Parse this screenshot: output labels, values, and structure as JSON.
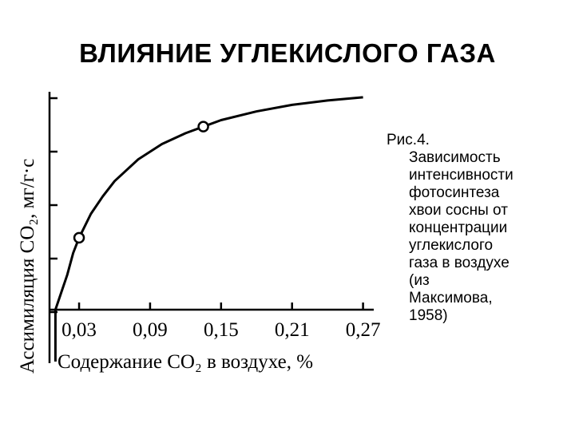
{
  "slide": {
    "title": "ВЛИЯНИЕ УГЛЕКИСЛОГО ГАЗА"
  },
  "caption": {
    "lines": [
      "Рис.4.",
      "Зависимость",
      "интенсивности",
      "фотосинтеза",
      "хвои сосны от",
      "концентрации",
      "углекислого",
      "газа в воздухе",
      "(из",
      "Максимова,",
      "1958)"
    ]
  },
  "chart_data": {
    "type": "line",
    "xlabel": "Содержание  CO₂ в воздухе,  %",
    "ylabel": "Ассимиляция CO₂, мг/г·с",
    "x_ticks": [
      "0,03",
      "0,09",
      "0,15",
      "0,21",
      "0,27"
    ],
    "x_tick_values": [
      0.03,
      0.09,
      0.15,
      0.21,
      0.27
    ],
    "y_tick_count": 5,
    "y_tick_labels_shown": false,
    "xlim": [
      0.005,
      0.275
    ],
    "ylim": [
      0,
      1
    ],
    "y_units": "relative (no numeric labels shown)",
    "series": [
      {
        "curve": [
          [
            0.01,
            0.0
          ],
          [
            0.015,
            0.08
          ],
          [
            0.02,
            0.16
          ],
          [
            0.025,
            0.26
          ],
          [
            0.03,
            0.33
          ],
          [
            0.04,
            0.44
          ],
          [
            0.05,
            0.52
          ],
          [
            0.06,
            0.59
          ],
          [
            0.08,
            0.69
          ],
          [
            0.1,
            0.76
          ],
          [
            0.12,
            0.81
          ],
          [
            0.135,
            0.84
          ],
          [
            0.15,
            0.87
          ],
          [
            0.18,
            0.91
          ],
          [
            0.21,
            0.94
          ],
          [
            0.24,
            0.96
          ],
          [
            0.27,
            0.975
          ]
        ],
        "markers": [
          [
            0.03,
            0.33
          ],
          [
            0.135,
            0.84
          ]
        ]
      }
    ],
    "grid": false,
    "legend": "none"
  }
}
